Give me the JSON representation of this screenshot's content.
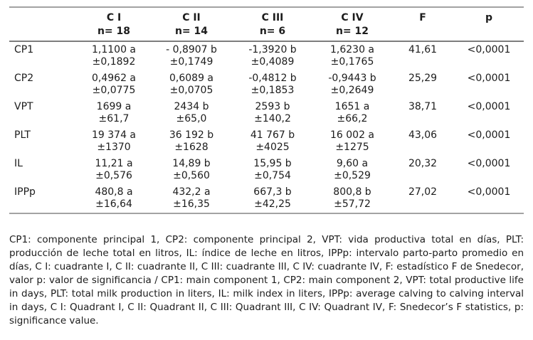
{
  "table": {
    "col_groups": [
      {
        "label": "C I",
        "n": "n= 18"
      },
      {
        "label": "C II",
        "n": "n= 14"
      },
      {
        "label": "C III",
        "n": "n= 6"
      },
      {
        "label": "C IV",
        "n": "n= 12"
      }
    ],
    "f_header": "F",
    "p_header": "p",
    "rows": [
      {
        "label": "CP1",
        "means": [
          "1,1100 a",
          "- 0,8907 b",
          "-1,3920 b",
          "1,6230 a"
        ],
        "se": [
          "±0,1892",
          "±0,1749",
          "±0,4089",
          "±0,1765"
        ],
        "f": "41,61",
        "p": "<0,0001"
      },
      {
        "label": "CP2",
        "means": [
          "0,4962 a",
          "0,6089 a",
          "-0,4812 b",
          "-0,9443 b"
        ],
        "se": [
          "±0,0775",
          "±0,0705",
          "±0,1853",
          "±0,2649"
        ],
        "f": "25,29",
        "p": "<0,0001"
      },
      {
        "label": "VPT",
        "means": [
          "1699 a",
          "2434 b",
          "2593 b",
          "1651 a"
        ],
        "se": [
          "±61,7",
          "±65,0",
          "±140,2",
          "±66,2"
        ],
        "f": "38,71",
        "p": "<0,0001"
      },
      {
        "label": "PLT",
        "means": [
          "19 374 a",
          "36 192 b",
          "41 767 b",
          "16 002 a"
        ],
        "se": [
          "±1370",
          "±1628",
          "±4025",
          "±1275"
        ],
        "f": "43,06",
        "p": "<0,0001"
      },
      {
        "label": "IL",
        "means": [
          "11,21 a",
          "14,89 b",
          "15,95 b",
          "9,60 a"
        ],
        "se": [
          "±0,576",
          "±0,560",
          "±0,754",
          "±0,529"
        ],
        "f": "20,32",
        "p": "<0,0001"
      },
      {
        "label": "IPPp",
        "means": [
          "480,8 a",
          "432,2 a",
          "667,3 b",
          "800,8 b"
        ],
        "se": [
          "±16,64",
          "±16,35",
          "±42,25",
          "±57,72"
        ],
        "f": "27,02",
        "p": "<0,0001"
      }
    ]
  },
  "footnote": "CP1: componente principal 1, CP2: componente principal 2, VPT: vida productiva total en días, PLT: producción de leche total en litros, IL: índice de leche en litros, IPPp: intervalo parto-parto promedio en días, C I: cuadrante I, C II: cuadrante II, C III: cuadrante III, C IV: cuadrante IV, F: estadístico F de Snedecor, valor p: valor de significancia / CP1: main component 1, CP2: main component 2, VPT: total productive life in days, PLT: total milk production in liters, IL: milk index in liters, IPPp: average calving to calving interval in days, C I: Quadrant I, C II: Quadrant II, C III: Quadrant III, C IV: Quadrant IV, F: Snedecor’s F statistics, p: significance value.",
  "chart_data": {
    "type": "table",
    "title": "",
    "columns": [
      "",
      "C I n= 18",
      "C II n= 14",
      "C III n= 6",
      "C IV n= 12",
      "F",
      "p"
    ],
    "rows": [
      [
        "CP1",
        "1,1100 a ±0,1892",
        "- 0,8907 b ±0,1749",
        "-1,3920 b ±0,4089",
        "1,6230 a ±0,1765",
        "41,61",
        "<0,0001"
      ],
      [
        "CP2",
        "0,4962 a ±0,0775",
        "0,6089 a ±0,0705",
        "-0,4812 b ±0,1853",
        "-0,9443 b ±0,2649",
        "25,29",
        "<0,0001"
      ],
      [
        "VPT",
        "1699 a ±61,7",
        "2434 b ±65,0",
        "2593 b ±140,2",
        "1651 a ±66,2",
        "38,71",
        "<0,0001"
      ],
      [
        "PLT",
        "19 374 a ±1370",
        "36 192 b ±1628",
        "41 767 b ±4025",
        "16 002 a ±1275",
        "43,06",
        "<0,0001"
      ],
      [
        "IL",
        "11,21 a ±0,576",
        "14,89 b ±0,560",
        "15,95 b ±0,754",
        "9,60 a ±0,529",
        "20,32",
        "<0,0001"
      ],
      [
        "IPPp",
        "480,8 a ±16,64",
        "432,2 a ±16,35",
        "667,3 b ±42,25",
        "800,8 b ±57,72",
        "27,02",
        "<0,0001"
      ]
    ]
  }
}
